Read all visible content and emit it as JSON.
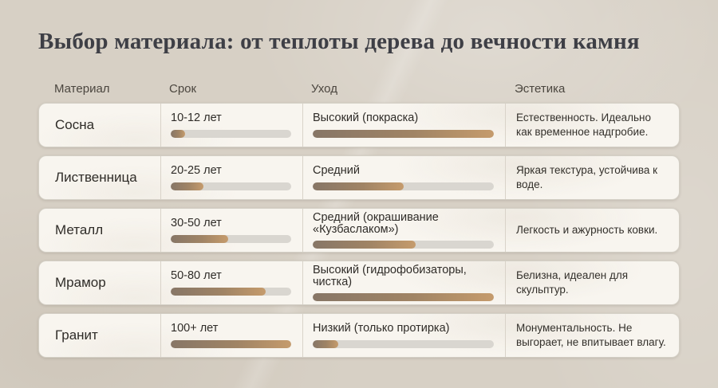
{
  "page": {
    "title": "Выбор материала: от теплоты дерева до вечности камня"
  },
  "colors": {
    "page_background": "#d7d0c5",
    "card_background": "#f8f5ef",
    "bar_track": "#d9d6d0",
    "bar_fill_start": "#877666",
    "bar_fill_end": "#c59b6c",
    "title_text": "#3e3f46"
  },
  "table": {
    "headers": [
      "Материал",
      "Срок",
      "Уход",
      "Эстетика"
    ],
    "rows": [
      {
        "material": "Сосна",
        "lifespan": {
          "label": "10-12 лет",
          "percent": 12
        },
        "care": {
          "label": "Высокий (покраска)",
          "percent": 100
        },
        "aesthetics": "Естественность. Идеально как временное надгробие."
      },
      {
        "material": "Лиственница",
        "lifespan": {
          "label": "20-25 лет",
          "percent": 27
        },
        "care": {
          "label": "Средний",
          "percent": 50
        },
        "aesthetics": "Яркая текстура, устойчива к воде."
      },
      {
        "material": "Металл",
        "lifespan": {
          "label": "30-50 лет",
          "percent": 48
        },
        "care": {
          "label": "Средний (окрашивание «Кузбаслаком»)",
          "percent": 57
        },
        "aesthetics": "Легкость и ажурность ковки."
      },
      {
        "material": "Мрамор",
        "lifespan": {
          "label": "50-80 лет",
          "percent": 79
        },
        "care": {
          "label": "Высокий (гидрофобизаторы, чистка)",
          "percent": 100
        },
        "aesthetics": "Белизна, идеален для скульптур."
      },
      {
        "material": "Гранит",
        "lifespan": {
          "label": "100+ лет",
          "percent": 100
        },
        "care": {
          "label": "Низкий (только протирка)",
          "percent": 14
        },
        "aesthetics": "Монументальность. Не выгорает, не впитывает влагу."
      }
    ]
  }
}
